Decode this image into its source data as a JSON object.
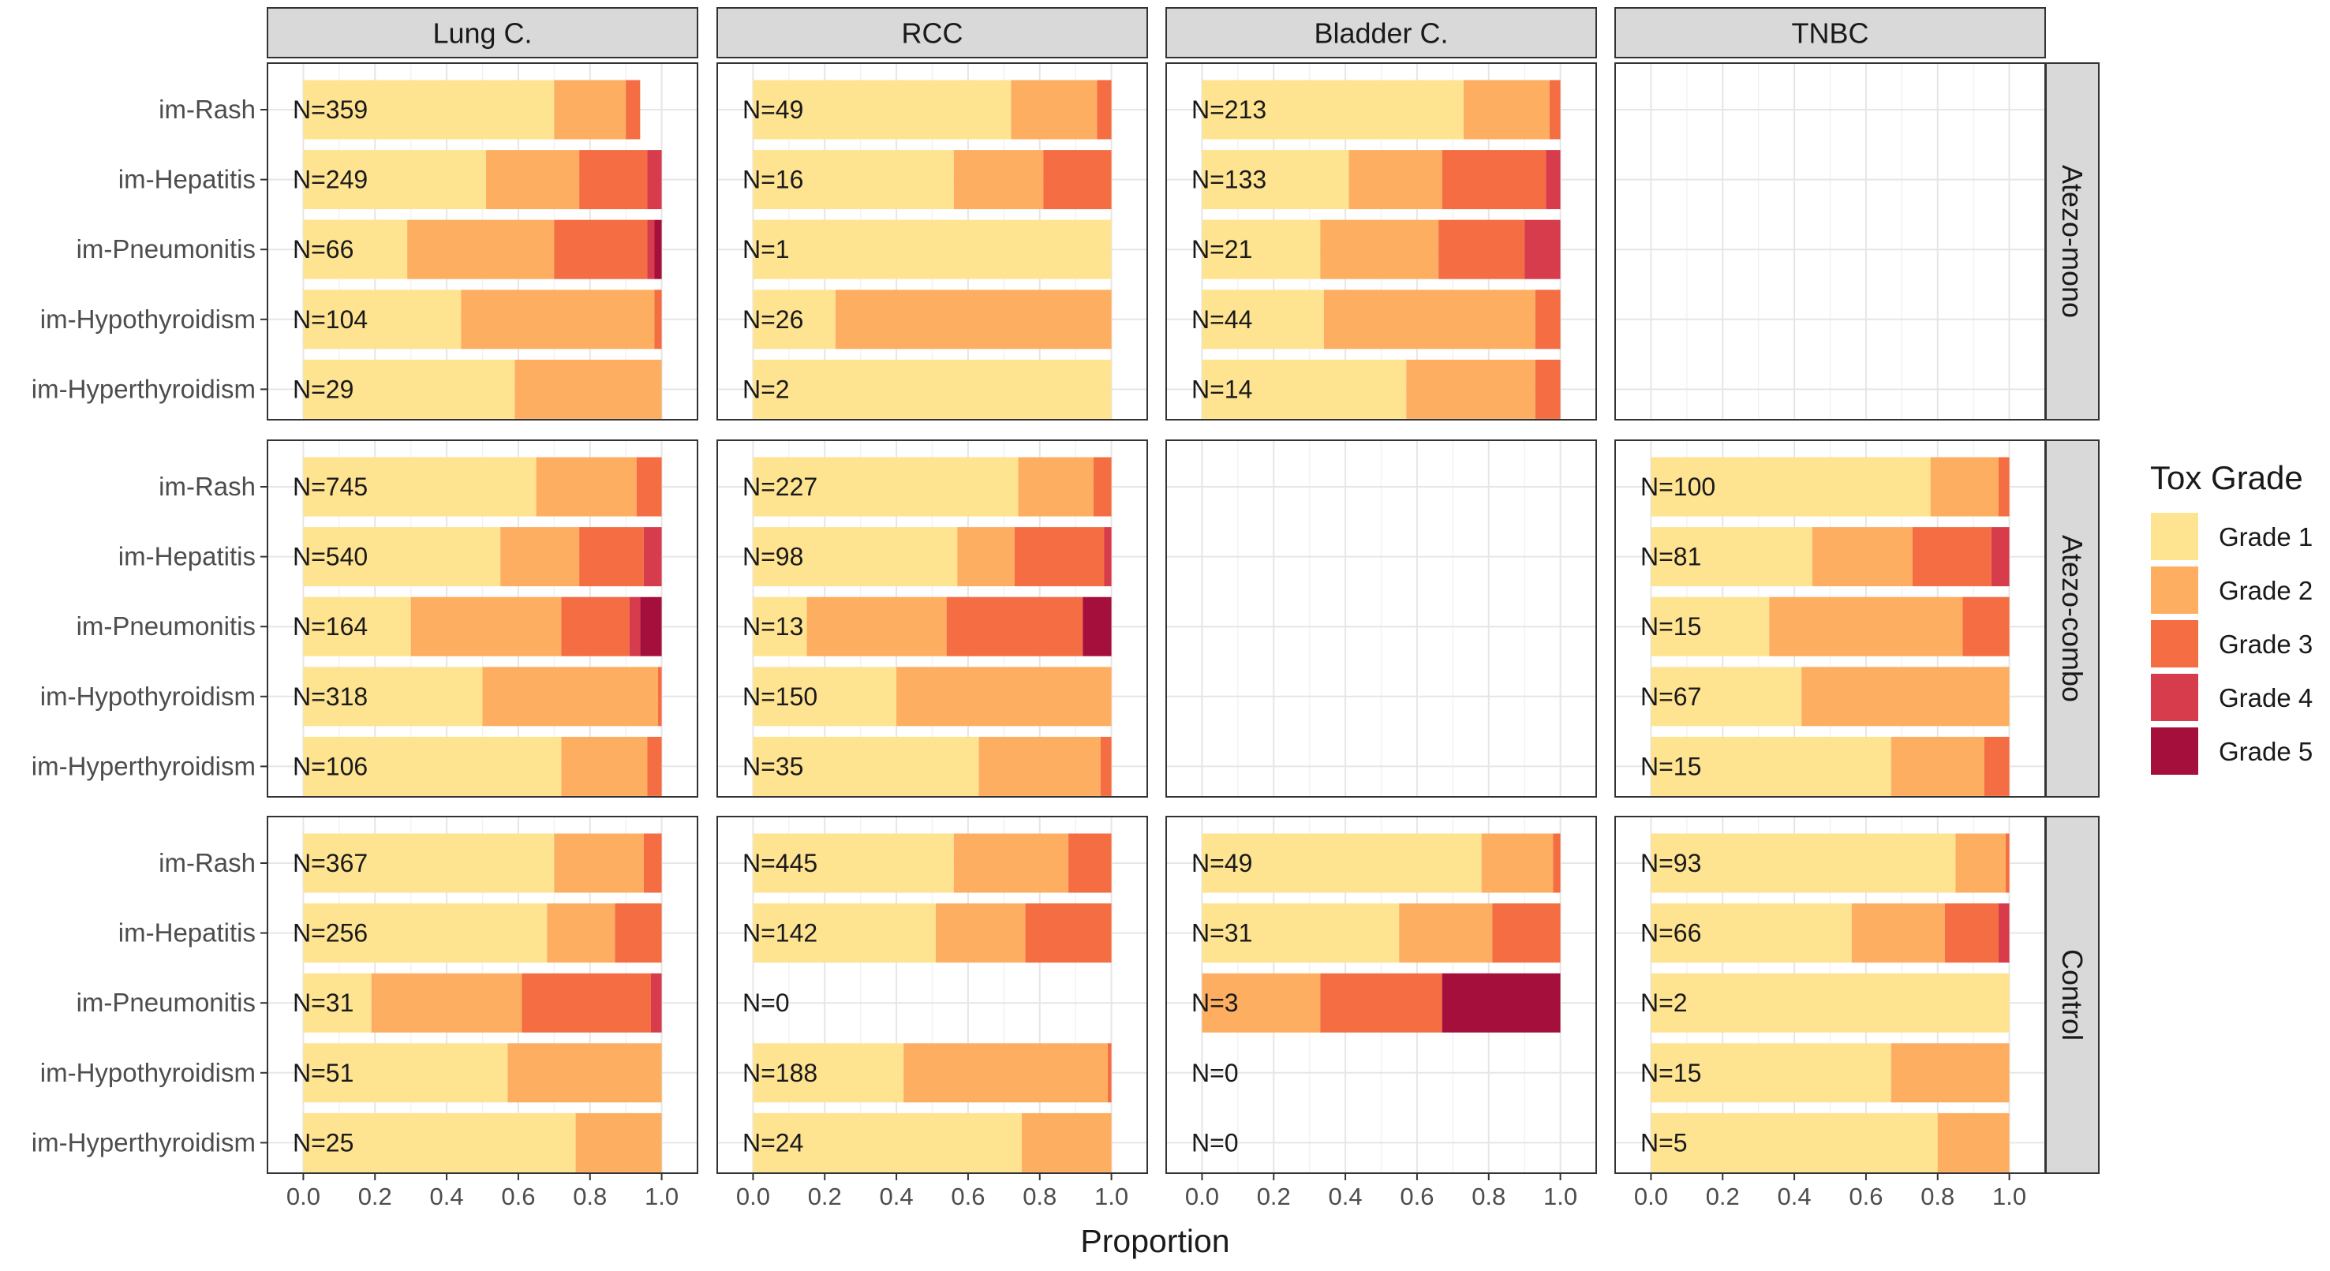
{
  "chart_data": {
    "type": "bar",
    "orientation": "horizontal-stacked",
    "xlabel": "Proportion",
    "xlim": [
      0,
      1
    ],
    "x_ticks": [
      "0.0",
      "0.2",
      "0.4",
      "0.6",
      "0.8",
      "1.0"
    ],
    "legend": {
      "title": "Tox Grade",
      "placement": "right",
      "items": [
        {
          "name": "Grade 1",
          "color": "#FEE391"
        },
        {
          "name": "Grade 2",
          "color": "#FDAE61"
        },
        {
          "name": "Grade 3",
          "color": "#F46D43"
        },
        {
          "name": "Grade 4",
          "color": "#D73C4C"
        },
        {
          "name": "Grade 5",
          "color": "#A50F3C"
        }
      ]
    },
    "column_panels": [
      "Lung C.",
      "RCC",
      "Bladder C.",
      "TNBC"
    ],
    "row_panels": [
      "Atezo-mono",
      "Atezo-combo",
      "Control"
    ],
    "categories": [
      "im-Rash",
      "im-Hepatitis",
      "im-Pneumonitis",
      "im-Hypothyroidism",
      "im-Hyperthyroidism"
    ],
    "panels": [
      [
        {
          "empty": false,
          "bars": [
            {
              "n": "N=359",
              "grades": [
                0.7,
                0.2,
                0.04,
                0,
                0
              ]
            },
            {
              "n": "N=249",
              "grades": [
                0.51,
                0.26,
                0.19,
                0.04,
                0
              ]
            },
            {
              "n": "N=66",
              "grades": [
                0.29,
                0.41,
                0.26,
                0.02,
                0.02
              ]
            },
            {
              "n": "N=104",
              "grades": [
                0.44,
                0.54,
                0.02,
                0,
                0
              ]
            },
            {
              "n": "N=29",
              "grades": [
                0.59,
                0.41,
                0,
                0,
                0
              ]
            }
          ]
        },
        {
          "empty": false,
          "bars": [
            {
              "n": "N=49",
              "grades": [
                0.72,
                0.24,
                0.04,
                0,
                0
              ]
            },
            {
              "n": "N=16",
              "grades": [
                0.56,
                0.25,
                0.19,
                0,
                0
              ]
            },
            {
              "n": "N=1",
              "grades": [
                1,
                0,
                0,
                0,
                0
              ]
            },
            {
              "n": "N=26",
              "grades": [
                0.23,
                0.77,
                0,
                0,
                0
              ]
            },
            {
              "n": "N=2",
              "grades": [
                1,
                0,
                0,
                0,
                0
              ]
            }
          ]
        },
        {
          "empty": false,
          "bars": [
            {
              "n": "N=213",
              "grades": [
                0.73,
                0.24,
                0.03,
                0,
                0
              ]
            },
            {
              "n": "N=133",
              "grades": [
                0.41,
                0.26,
                0.29,
                0.04,
                0
              ]
            },
            {
              "n": "N=21",
              "grades": [
                0.33,
                0.33,
                0.24,
                0.1,
                0
              ]
            },
            {
              "n": "N=44",
              "grades": [
                0.34,
                0.59,
                0.07,
                0,
                0
              ]
            },
            {
              "n": "N=14",
              "grades": [
                0.57,
                0.36,
                0.07,
                0,
                0
              ]
            }
          ]
        },
        {
          "empty": true,
          "bars": []
        }
      ],
      [
        {
          "empty": false,
          "bars": [
            {
              "n": "N=745",
              "grades": [
                0.65,
                0.28,
                0.07,
                0,
                0
              ]
            },
            {
              "n": "N=540",
              "grades": [
                0.55,
                0.22,
                0.18,
                0.05,
                0
              ]
            },
            {
              "n": "N=164",
              "grades": [
                0.3,
                0.42,
                0.19,
                0.03,
                0.06
              ]
            },
            {
              "n": "N=318",
              "grades": [
                0.5,
                0.49,
                0.01,
                0,
                0
              ]
            },
            {
              "n": "N=106",
              "grades": [
                0.72,
                0.24,
                0.04,
                0,
                0
              ]
            }
          ]
        },
        {
          "empty": false,
          "bars": [
            {
              "n": "N=227",
              "grades": [
                0.74,
                0.21,
                0.05,
                0,
                0
              ]
            },
            {
              "n": "N=98",
              "grades": [
                0.57,
                0.16,
                0.25,
                0.02,
                0
              ]
            },
            {
              "n": "N=13",
              "grades": [
                0.15,
                0.39,
                0.38,
                0,
                0.08
              ]
            },
            {
              "n": "N=150",
              "grades": [
                0.4,
                0.6,
                0,
                0,
                0
              ]
            },
            {
              "n": "N=35",
              "grades": [
                0.63,
                0.34,
                0.03,
                0,
                0
              ]
            }
          ]
        },
        {
          "empty": true,
          "bars": []
        },
        {
          "empty": false,
          "bars": [
            {
              "n": "N=100",
              "grades": [
                0.78,
                0.19,
                0.03,
                0,
                0
              ]
            },
            {
              "n": "N=81",
              "grades": [
                0.45,
                0.28,
                0.22,
                0.05,
                0
              ]
            },
            {
              "n": "N=15",
              "grades": [
                0.33,
                0.54,
                0.13,
                0,
                0
              ]
            },
            {
              "n": "N=67",
              "grades": [
                0.42,
                0.58,
                0,
                0,
                0
              ]
            },
            {
              "n": "N=15",
              "grades": [
                0.67,
                0.26,
                0.07,
                0,
                0
              ]
            }
          ]
        }
      ],
      [
        {
          "empty": false,
          "bars": [
            {
              "n": "N=367",
              "grades": [
                0.7,
                0.25,
                0.05,
                0,
                0
              ]
            },
            {
              "n": "N=256",
              "grades": [
                0.68,
                0.19,
                0.13,
                0,
                0
              ]
            },
            {
              "n": "N=31",
              "grades": [
                0.19,
                0.42,
                0.36,
                0.03,
                0
              ]
            },
            {
              "n": "N=51",
              "grades": [
                0.57,
                0.43,
                0,
                0,
                0
              ]
            },
            {
              "n": "N=25",
              "grades": [
                0.76,
                0.24,
                0,
                0,
                0
              ]
            }
          ]
        },
        {
          "empty": false,
          "bars": [
            {
              "n": "N=445",
              "grades": [
                0.56,
                0.32,
                0.12,
                0,
                0
              ]
            },
            {
              "n": "N=142",
              "grades": [
                0.51,
                0.25,
                0.24,
                0,
                0
              ]
            },
            {
              "n": "N=0",
              "grades": [
                0,
                0,
                0,
                0,
                0
              ]
            },
            {
              "n": "N=188",
              "grades": [
                0.42,
                0.57,
                0.01,
                0,
                0
              ]
            },
            {
              "n": "N=24",
              "grades": [
                0.75,
                0.25,
                0,
                0,
                0
              ]
            }
          ]
        },
        {
          "empty": false,
          "bars": [
            {
              "n": "N=49",
              "grades": [
                0.78,
                0.2,
                0.02,
                0,
                0
              ]
            },
            {
              "n": "N=31",
              "grades": [
                0.55,
                0.26,
                0.19,
                0,
                0
              ]
            },
            {
              "n": "N=3",
              "grades": [
                0,
                0.33,
                0.34,
                0,
                0.33
              ]
            },
            {
              "n": "N=0",
              "grades": [
                0,
                0,
                0,
                0,
                0
              ]
            },
            {
              "n": "N=0",
              "grades": [
                0,
                0,
                0,
                0,
                0
              ]
            }
          ]
        },
        {
          "empty": false,
          "bars": [
            {
              "n": "N=93",
              "grades": [
                0.85,
                0.14,
                0.01,
                0,
                0
              ]
            },
            {
              "n": "N=66",
              "grades": [
                0.56,
                0.26,
                0.15,
                0.03,
                0
              ]
            },
            {
              "n": "N=2",
              "grades": [
                1,
                0,
                0,
                0,
                0
              ]
            },
            {
              "n": "N=15",
              "grades": [
                0.67,
                0.33,
                0,
                0,
                0
              ]
            },
            {
              "n": "N=5",
              "grades": [
                0.8,
                0.2,
                0,
                0,
                0
              ]
            }
          ]
        }
      ]
    ]
  }
}
